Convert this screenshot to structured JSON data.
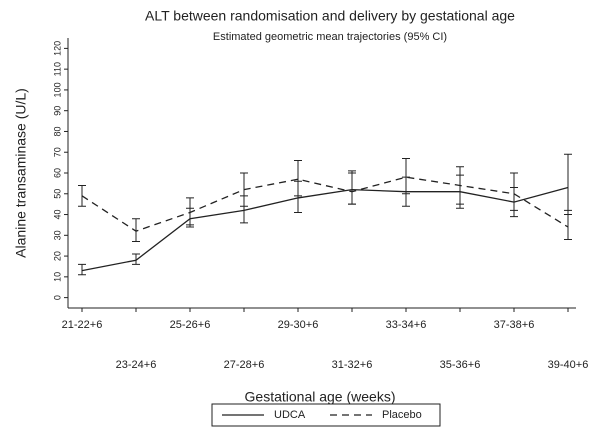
{
  "chart_data": {
    "type": "line",
    "title": "ALT between randomisation and delivery by gestational age",
    "subtitle": "Estimated geometric mean trajectories (95% CI)",
    "x_label": "Gestational age (weeks)",
    "y_label": "Alanine transaminase (U/L)",
    "categories": [
      "21-22+6",
      "23-24+6",
      "25-26+6",
      "27-28+6",
      "29-30+6",
      "31-32+6",
      "33-34+6",
      "35-36+6",
      "37-38+6",
      "39-40+6"
    ],
    "series": [
      {
        "name": "UDCA",
        "color": "#222222",
        "style": "solid",
        "values": [
          13,
          18,
          38,
          42,
          48,
          52,
          51,
          51,
          46,
          53
        ],
        "lower": [
          11,
          16,
          34,
          36,
          41,
          45,
          44,
          43,
          39,
          40
        ],
        "upper": [
          16,
          21,
          43,
          49,
          56,
          60,
          58,
          59,
          53,
          69
        ]
      },
      {
        "name": "Placebo",
        "color": "#222222",
        "style": "dashed",
        "values": [
          49,
          32,
          41,
          52,
          57,
          51,
          58,
          54,
          50,
          34
        ],
        "lower": [
          44,
          27,
          35,
          44,
          49,
          45,
          50,
          45,
          42,
          28
        ],
        "upper": [
          54,
          38,
          48,
          60,
          66,
          61,
          67,
          63,
          60,
          42
        ]
      }
    ],
    "ylim": [
      -5,
      125
    ],
    "yticks": [
      0,
      10,
      20,
      30,
      40,
      50,
      60,
      70,
      80,
      90,
      100,
      110,
      120
    ],
    "legend": "bottom"
  }
}
